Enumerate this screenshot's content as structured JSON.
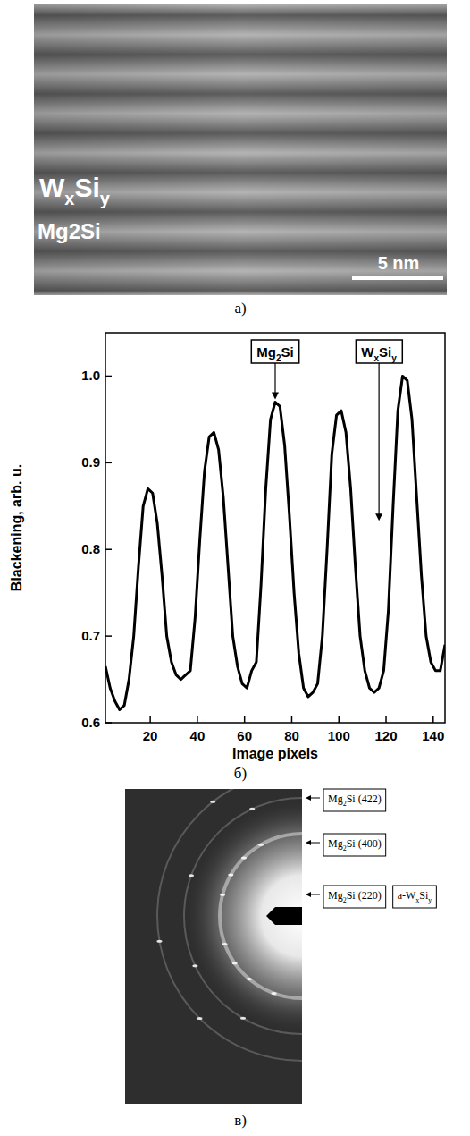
{
  "panel_a": {
    "labels": [
      {
        "segments": [
          {
            "t": "W"
          },
          {
            "t": "x",
            "sub": true
          },
          {
            "t": "Si"
          },
          {
            "t": "y",
            "sub": true
          }
        ]
      },
      {
        "segments": [
          {
            "t": "Mg2Si"
          }
        ]
      }
    ],
    "scale_bar": "5 nm",
    "letter": "a)"
  },
  "chart_data": {
    "type": "line",
    "x_label": "Image pixels",
    "y_label": "Blackening, arb. u.",
    "color": "#000000",
    "grid": false,
    "x": [
      1,
      3,
      5,
      7,
      9,
      11,
      13,
      15,
      17,
      19,
      21,
      23,
      25,
      27,
      29,
      31,
      33,
      35,
      37,
      39,
      41,
      43,
      45,
      47,
      49,
      51,
      53,
      55,
      57,
      59,
      61,
      63,
      65,
      67,
      69,
      71,
      73,
      75,
      77,
      79,
      81,
      83,
      85,
      87,
      89,
      91,
      93,
      95,
      97,
      99,
      101,
      103,
      105,
      107,
      109,
      111,
      113,
      115,
      117,
      119,
      121,
      123,
      125,
      127,
      129,
      131,
      133,
      135,
      137,
      139,
      141,
      143,
      145
    ],
    "values": [
      0.665,
      0.64,
      0.625,
      0.615,
      0.62,
      0.65,
      0.7,
      0.78,
      0.85,
      0.87,
      0.865,
      0.83,
      0.77,
      0.7,
      0.67,
      0.655,
      0.65,
      0.655,
      0.66,
      0.72,
      0.81,
      0.89,
      0.93,
      0.935,
      0.915,
      0.86,
      0.78,
      0.7,
      0.665,
      0.645,
      0.64,
      0.66,
      0.67,
      0.76,
      0.87,
      0.95,
      0.97,
      0.965,
      0.92,
      0.84,
      0.75,
      0.68,
      0.64,
      0.63,
      0.635,
      0.645,
      0.7,
      0.8,
      0.91,
      0.955,
      0.96,
      0.935,
      0.87,
      0.78,
      0.7,
      0.66,
      0.64,
      0.635,
      0.64,
      0.66,
      0.73,
      0.85,
      0.96,
      1.0,
      0.995,
      0.95,
      0.86,
      0.77,
      0.7,
      0.67,
      0.66,
      0.66,
      0.69
    ],
    "xlim": [
      1,
      145
    ],
    "ylim": [
      0.6,
      1.05
    ],
    "xticks": [
      20,
      40,
      60,
      80,
      100,
      120,
      140
    ],
    "yticks": [
      0.6,
      0.7,
      0.8,
      0.9,
      {
        "value": 1,
        "label": "1.0"
      }
    ],
    "annotations": [
      {
        "segments": [
          {
            "t": "Mg"
          },
          {
            "t": "2",
            "sub": true
          },
          {
            "t": "Si"
          }
        ],
        "x": 73,
        "y": 0.97
      },
      {
        "segments": [
          {
            "t": "W"
          },
          {
            "t": "x",
            "sub": true
          },
          {
            "t": "Si"
          },
          {
            "t": "y",
            "sub": true
          }
        ],
        "x": 117,
        "y": 0.83
      }
    ]
  },
  "panel_b": {
    "letter": "б)"
  },
  "panel_c": {
    "labels": [
      {
        "segments": [
          {
            "t": "Mg"
          },
          {
            "t": "2",
            "sub": true
          },
          {
            "t": "Si (422)"
          }
        ]
      },
      {
        "segments": [
          {
            "t": "Mg"
          },
          {
            "t": "2",
            "sub": true
          },
          {
            "t": "Si (400)"
          }
        ]
      },
      {
        "segments": [
          {
            "t": "Mg"
          },
          {
            "t": "2",
            "sub": true
          },
          {
            "t": "Si (220)"
          }
        ]
      }
    ],
    "extra_label": {
      "segments": [
        {
          "t": "a-W"
        },
        {
          "t": "x",
          "sub": true
        },
        {
          "t": "Si"
        },
        {
          "t": "y",
          "sub": true
        }
      ]
    },
    "letter": "в)"
  }
}
